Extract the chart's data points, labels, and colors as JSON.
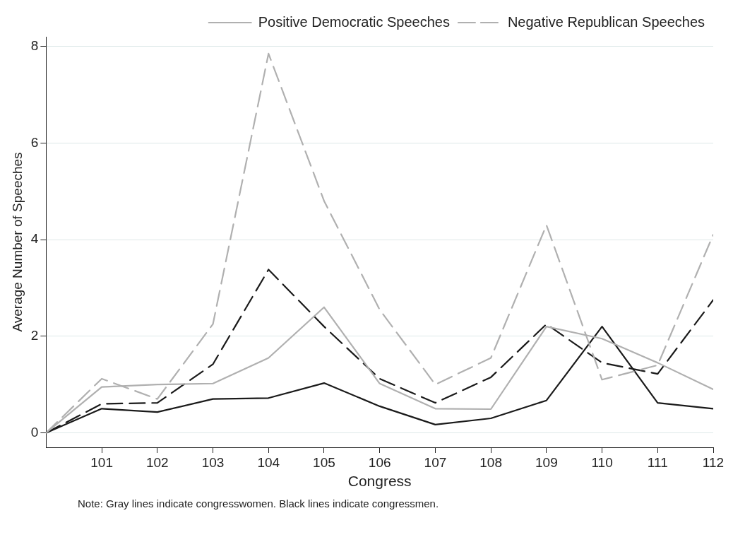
{
  "chart_data": {
    "type": "line",
    "xlabel": "Congress",
    "ylabel": "Average Number of Speeches",
    "x": [
      100,
      101,
      102,
      103,
      104,
      105,
      106,
      107,
      108,
      109,
      110,
      111,
      112
    ],
    "xlim": [
      100,
      112
    ],
    "xticks": [
      101,
      102,
      103,
      104,
      105,
      106,
      107,
      108,
      109,
      110,
      111,
      112
    ],
    "ylim": [
      -0.3,
      8.2
    ],
    "yticks": [
      0,
      2,
      4,
      6,
      8
    ],
    "grid": "y",
    "legend": "top right",
    "marker": "none",
    "annotations": [
      "Note: Gray lines indicate congresswomen. Black lines indicate congressmen."
    ],
    "series": [
      {
        "name": "Positive Democratic Speeches",
        "color": "#b0b0b0",
        "line_style": "solid",
        "values": [
          0,
          0.95,
          1.0,
          1.02,
          1.55,
          2.6,
          1.02,
          0.5,
          0.49,
          2.2,
          1.95,
          1.45,
          0.9
        ]
      },
      {
        "name": "Negative Republican Speeches",
        "color": "#b0b0b0",
        "line_style": "dashed",
        "values": [
          0,
          1.12,
          0.7,
          2.25,
          7.85,
          4.8,
          2.55,
          1.0,
          1.55,
          4.3,
          1.1,
          1.4,
          4.1
        ]
      },
      {
        "color": "#1a1a1a",
        "line_style": "solid",
        "values": [
          0,
          0.5,
          0.43,
          0.7,
          0.72,
          1.03,
          0.55,
          0.17,
          0.3,
          0.67,
          2.2,
          0.62,
          0.5
        ]
      },
      {
        "color": "#1a1a1a",
        "line_style": "dashed",
        "values": [
          0,
          0.6,
          0.62,
          1.42,
          3.38,
          2.2,
          1.12,
          0.62,
          1.15,
          2.25,
          1.45,
          1.22,
          2.75
        ]
      }
    ]
  }
}
